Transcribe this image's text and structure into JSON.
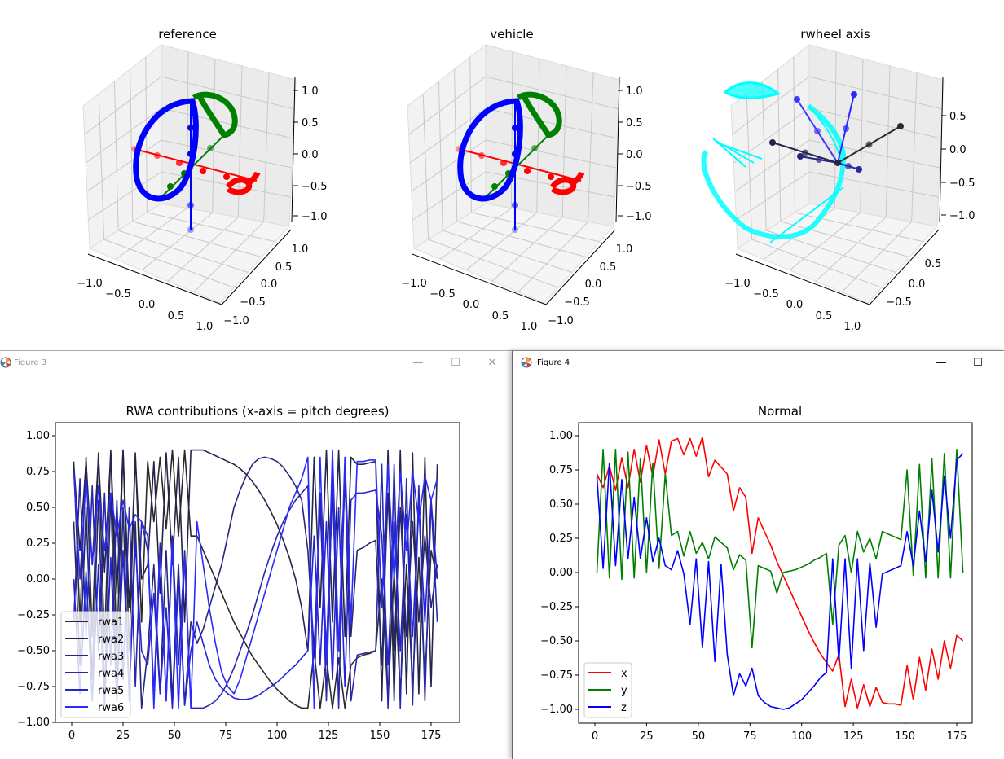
{
  "windows": {
    "figure3": {
      "title": "Figure 3",
      "minimize": "—",
      "maximize": "☐",
      "close": "✕"
    },
    "figure4": {
      "title": "Figure 4",
      "minimize": "—",
      "maximize": "☐"
    }
  },
  "plots3d": [
    {
      "title": "reference",
      "x_ticks": [
        "−1.0",
        "−0.5",
        "0.0",
        "0.5",
        "1.0"
      ],
      "y_ticks": [
        "1.0",
        "0.5",
        "0.0",
        "−0.5",
        "−1.0"
      ],
      "z_ticks": [
        "1.0",
        "0.5",
        "0.0",
        "−0.5",
        "−1.0"
      ]
    },
    {
      "title": "vehicle",
      "x_ticks": [
        "−1.0",
        "−0.5",
        "0.0",
        "0.5",
        "1.0"
      ],
      "y_ticks": [
        "1.0",
        "0.5",
        "0.0",
        "−0.5",
        "−1.0"
      ],
      "z_ticks": [
        "1.0",
        "0.5",
        "0.0",
        "−0.5",
        "−1.0"
      ]
    },
    {
      "title": "rwheel axis",
      "x_ticks": [
        "−1.0",
        "−0.5",
        "0.0",
        "0.5",
        "1.0"
      ],
      "y_ticks": [
        "0.5",
        "0.0",
        "−0.5"
      ],
      "z_ticks": [
        "0.5",
        "0.0",
        "−0.5",
        "−1.0"
      ]
    }
  ],
  "chart_data": [
    {
      "type": "line",
      "title": "RWA contributions (x-axis = pitch degrees)",
      "xlabel": "",
      "ylabel": "",
      "xlim": [
        -7,
        189
      ],
      "ylim": [
        -1.0,
        1.08
      ],
      "x_ticks": [
        0,
        25,
        50,
        75,
        100,
        125,
        150,
        175
      ],
      "x_tick_labels": [
        "0",
        "25",
        "50",
        "75",
        "100",
        "125",
        "150",
        "175"
      ],
      "y_ticks": [
        1.0,
        0.75,
        0.5,
        0.25,
        0.0,
        -0.25,
        -0.5,
        -0.75,
        -1.0
      ],
      "y_tick_labels": [
        "1.00",
        "0.75",
        "0.50",
        "0.25",
        "0.00",
        "−0.25",
        "−0.50",
        "−0.75",
        "−1.00"
      ],
      "legend_position": "lower-left",
      "x": [
        1,
        4,
        7,
        10,
        13,
        16,
        19,
        22,
        25,
        28,
        31,
        34,
        37,
        40,
        43,
        46,
        49,
        52,
        55,
        58,
        61,
        64,
        67,
        70,
        73,
        76,
        79,
        82,
        85,
        88,
        91,
        94,
        97,
        100,
        103,
        106,
        109,
        112,
        115,
        118,
        121,
        124,
        127,
        130,
        133,
        136,
        139,
        142,
        145,
        148,
        151,
        154,
        157,
        160,
        163,
        166,
        169,
        172,
        175,
        178
      ],
      "series": [
        {
          "name": "rwa1",
          "color": "#2b2b2b",
          "values": [
            0.82,
            -0.3,
            0.85,
            -0.4,
            0.88,
            -0.45,
            0.9,
            -0.5,
            0.9,
            -0.5,
            0.88,
            -0.3,
            0.82,
            0.4,
            0.85,
            0.35,
            0.9,
            0.3,
            0.9,
            0.3,
            0.3,
            0.2,
            0.1,
            0.0,
            -0.1,
            -0.2,
            -0.3,
            -0.38,
            -0.46,
            -0.54,
            -0.6,
            -0.66,
            -0.72,
            -0.77,
            -0.81,
            -0.85,
            -0.88,
            -0.9,
            -0.9,
            -0.5,
            -0.9,
            -0.55,
            -0.9,
            -0.55,
            -0.9,
            -0.6,
            -0.55,
            -0.53,
            -0.52,
            -0.5,
            0.0,
            -0.85,
            0.05,
            -0.8,
            0.1,
            -0.75,
            0.15,
            -0.7,
            0.2,
            0.0
          ]
        },
        {
          "name": "rwa2",
          "color": "#25254a",
          "values": [
            0.8,
            0.2,
            0.82,
            0.1,
            0.85,
            0.05,
            0.88,
            -0.1,
            0.9,
            -0.2,
            0.85,
            0.0,
            0.1,
            0.82,
            -0.1,
            0.88,
            0.1,
            0.85,
            -0.3,
            0.9,
            0.9,
            0.9,
            0.88,
            0.86,
            0.84,
            0.82,
            0.8,
            0.77,
            0.73,
            0.68,
            0.62,
            0.55,
            0.47,
            0.38,
            0.27,
            0.15,
            0.0,
            -0.2,
            -0.5,
            0.85,
            -0.2,
            0.9,
            -0.3,
            0.9,
            -0.4,
            0.85,
            0.8,
            0.8,
            0.81,
            0.82,
            -0.85,
            0.9,
            -0.85,
            0.9,
            -0.8,
            0.88,
            -0.8,
            0.85,
            -0.75,
            0.8
          ]
        },
        {
          "name": "rwa3",
          "color": "#26267a",
          "values": [
            0.4,
            -0.6,
            0.5,
            -0.7,
            0.55,
            -0.8,
            0.6,
            -0.85,
            0.5,
            -0.85,
            0.4,
            -0.9,
            -0.5,
            0.1,
            -0.8,
            0.2,
            -0.85,
            0.1,
            -0.88,
            -0.3,
            -0.45,
            -0.35,
            -0.2,
            -0.05,
            0.1,
            0.3,
            0.5,
            0.62,
            0.72,
            0.8,
            0.84,
            0.85,
            0.84,
            0.82,
            0.78,
            0.72,
            0.65,
            0.55,
            0.2,
            -0.5,
            0.5,
            -0.5,
            0.6,
            -0.5,
            0.7,
            -0.4,
            0.2,
            0.22,
            0.25,
            0.27,
            -0.6,
            0.6,
            -0.5,
            0.5,
            -0.4,
            0.4,
            -0.3,
            0.3,
            -0.2,
            0.1
          ]
        },
        {
          "name": "rwa4",
          "color": "#2828a8",
          "values": [
            -0.3,
            0.7,
            -0.4,
            0.65,
            -0.5,
            0.6,
            -0.6,
            0.55,
            -0.7,
            0.5,
            -0.75,
            0.4,
            0.2,
            -0.8,
            0.25,
            -0.85,
            0.3,
            -0.6,
            0.2,
            -0.9,
            -0.9,
            -0.9,
            -0.88,
            -0.85,
            -0.8,
            -0.72,
            -0.62,
            -0.5,
            -0.38,
            -0.25,
            -0.1,
            0.05,
            0.18,
            0.3,
            0.4,
            0.48,
            0.55,
            0.6,
            0.65,
            -0.85,
            0.6,
            -0.85,
            0.75,
            -0.9,
            0.8,
            -0.85,
            -0.53,
            -0.52,
            -0.51,
            -0.5,
            0.8,
            -0.9,
            0.8,
            -0.9,
            0.7,
            -0.88,
            0.65,
            -0.85,
            0.55,
            -0.3
          ]
        },
        {
          "name": "rwa5",
          "color": "#2424d4",
          "values": [
            0.0,
            -0.8,
            0.05,
            -0.85,
            0.1,
            -0.88,
            0.15,
            -0.85,
            0.2,
            -0.8,
            0.25,
            -0.5,
            -0.6,
            -0.1,
            -0.8,
            -0.2,
            -0.9,
            0.0,
            -0.88,
            -0.5,
            -0.3,
            -0.45,
            -0.6,
            -0.7,
            -0.76,
            -0.8,
            -0.83,
            -0.84,
            -0.84,
            -0.83,
            -0.81,
            -0.78,
            -0.75,
            -0.72,
            -0.68,
            -0.64,
            -0.6,
            -0.55,
            -0.5,
            0.3,
            -0.6,
            0.4,
            -0.7,
            0.5,
            -0.75,
            0.55,
            0.6,
            0.6,
            0.61,
            0.62,
            0.3,
            -0.6,
            0.4,
            -0.5,
            0.45,
            -0.4,
            0.5,
            -0.3,
            0.55,
            0.0
          ]
        },
        {
          "name": "rwa6",
          "color": "#2a2aff",
          "values": [
            0.75,
            0.0,
            0.7,
            0.1,
            0.65,
            0.2,
            0.6,
            0.3,
            0.55,
            0.35,
            0.45,
            0.4,
            0.3,
            -0.9,
            0.2,
            -0.85,
            0.25,
            -0.9,
            0.15,
            -0.9,
            0.4,
            0.1,
            -0.2,
            -0.45,
            -0.65,
            -0.75,
            -0.8,
            -0.7,
            -0.55,
            -0.4,
            -0.25,
            -0.1,
            0.05,
            0.2,
            0.35,
            0.5,
            0.6,
            0.7,
            0.85,
            -0.9,
            0.85,
            -0.6,
            0.9,
            -0.5,
            0.85,
            -0.3,
            0.82,
            0.82,
            0.83,
            0.83,
            -0.2,
            0.8,
            0.0,
            0.75,
            0.2,
            0.75,
            0.4,
            0.72,
            0.55,
            0.7
          ]
        }
      ]
    },
    {
      "type": "line",
      "title": "Normal",
      "xlabel": "",
      "ylabel": "",
      "xlim": [
        -8,
        188
      ],
      "ylim": [
        -1.1,
        1.1
      ],
      "x_ticks": [
        0,
        25,
        50,
        75,
        100,
        125,
        150,
        175
      ],
      "x_tick_labels": [
        "0",
        "25",
        "50",
        "75",
        "100",
        "125",
        "150",
        "175"
      ],
      "y_ticks": [
        1.0,
        0.75,
        0.5,
        0.25,
        0.0,
        -0.25,
        -0.5,
        -0.75,
        -1.0
      ],
      "y_tick_labels": [
        "1.00",
        "0.75",
        "0.50",
        "0.25",
        "0.00",
        "−0.25",
        "−0.50",
        "−0.75",
        "−1.00"
      ],
      "legend_position": "lower-left",
      "x": [
        1,
        4,
        7,
        10,
        13,
        16,
        19,
        22,
        25,
        28,
        31,
        34,
        37,
        40,
        43,
        46,
        49,
        52,
        55,
        58,
        61,
        64,
        67,
        70,
        73,
        76,
        79,
        82,
        85,
        88,
        91,
        94,
        97,
        100,
        103,
        106,
        109,
        112,
        115,
        118,
        121,
        124,
        127,
        130,
        133,
        136,
        139,
        142,
        145,
        148,
        151,
        154,
        157,
        160,
        163,
        166,
        169,
        172,
        175,
        178
      ],
      "series": [
        {
          "name": "x",
          "color": "#ff0000",
          "values": [
            0.72,
            0.62,
            0.78,
            0.6,
            0.84,
            0.62,
            0.9,
            0.66,
            0.93,
            0.7,
            0.97,
            0.72,
            0.96,
            0.98,
            0.86,
            0.98,
            0.85,
            0.99,
            0.7,
            0.82,
            0.77,
            0.72,
            0.45,
            0.62,
            0.55,
            0.14,
            0.4,
            0.3,
            0.2,
            0.08,
            -0.02,
            -0.12,
            -0.22,
            -0.32,
            -0.42,
            -0.51,
            -0.59,
            -0.66,
            -0.72,
            -0.6,
            -0.98,
            -0.78,
            -0.99,
            -0.82,
            -0.98,
            -0.84,
            -0.95,
            -0.96,
            -0.96,
            -0.97,
            -0.68,
            -0.93,
            -0.62,
            -0.86,
            -0.56,
            -0.78,
            -0.5,
            -0.7,
            -0.46,
            -0.5
          ]
        },
        {
          "name": "y",
          "color": "#008000",
          "values": [
            0.0,
            0.9,
            -0.04,
            0.9,
            -0.05,
            0.88,
            -0.04,
            0.83,
            0.0,
            0.8,
            0.03,
            0.72,
            0.27,
            0.3,
            0.12,
            0.3,
            0.14,
            0.22,
            0.1,
            0.26,
            0.22,
            0.18,
            0.02,
            0.13,
            0.09,
            -0.55,
            0.05,
            0.03,
            0.01,
            -0.15,
            0.0,
            0.01,
            0.02,
            0.04,
            0.06,
            0.09,
            0.11,
            0.14,
            -0.38,
            0.2,
            0.27,
            0.0,
            0.3,
            0.15,
            0.25,
            0.1,
            0.3,
            0.28,
            0.26,
            0.24,
            0.75,
            -0.02,
            0.79,
            -0.04,
            0.83,
            -0.04,
            0.87,
            -0.04,
            0.9,
            0.0
          ]
        },
        {
          "name": "z",
          "color": "#0000ff",
          "values": [
            0.7,
            0.03,
            0.8,
            0.05,
            0.68,
            0.1,
            0.55,
            0.1,
            0.4,
            0.08,
            0.25,
            0.05,
            0.02,
            0.16,
            -0.01,
            -0.38,
            0.1,
            -0.55,
            0.08,
            -0.65,
            0.06,
            -0.6,
            -0.9,
            -0.74,
            -0.83,
            -0.7,
            -0.9,
            -0.95,
            -0.98,
            -0.99,
            -1.0,
            -0.99,
            -0.96,
            -0.93,
            -0.88,
            -0.83,
            -0.77,
            -0.73,
            0.1,
            -0.65,
            0.1,
            -0.7,
            0.1,
            -0.57,
            0.07,
            -0.4,
            -0.01,
            0.01,
            0.03,
            0.05,
            0.3,
            0.05,
            0.45,
            0.08,
            0.6,
            0.15,
            0.7,
            0.25,
            0.82,
            0.87
          ]
        }
      ]
    }
  ]
}
